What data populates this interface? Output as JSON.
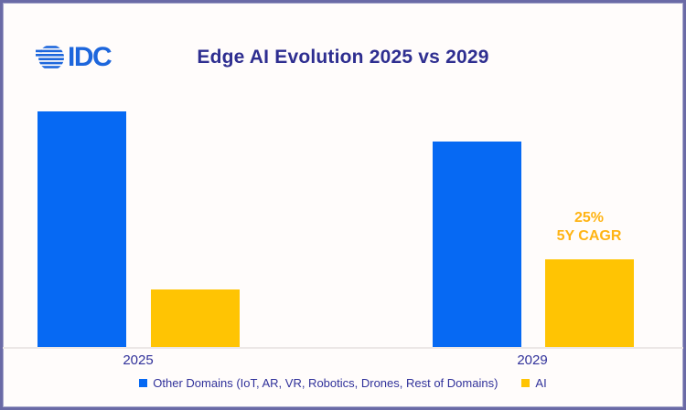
{
  "frame": {
    "background": "#FFFCFB",
    "border_color": "#6A6AA6"
  },
  "logo": {
    "text": "IDC",
    "color": "#1D66DC"
  },
  "header": {
    "title": "Edge AI Evolution 2025 vs 2029",
    "color": "#2E2E90"
  },
  "theme": {
    "text_navy": "#30319A",
    "axis_line": "#ECE7E6"
  },
  "chart_data": {
    "type": "bar",
    "title": "Edge AI Evolution 2025 vs 2029",
    "categories": [
      "2025",
      "2029"
    ],
    "series": [
      {
        "name": "Other Domains (IoT, AR, VR, Robotics, Drones, Rest of Domains)",
        "color": "#0669F3",
        "values": [
          86,
          75
        ]
      },
      {
        "name": "AI",
        "color": "#FFC403",
        "values": [
          21,
          32
        ]
      }
    ],
    "ylim": [
      0,
      100
    ],
    "grid": false,
    "legend_position": "bottom",
    "annotation": {
      "lines": [
        "25%",
        "5Y CAGR"
      ],
      "attached_to": "AI 2029 bar",
      "color": "#FFB414"
    }
  }
}
